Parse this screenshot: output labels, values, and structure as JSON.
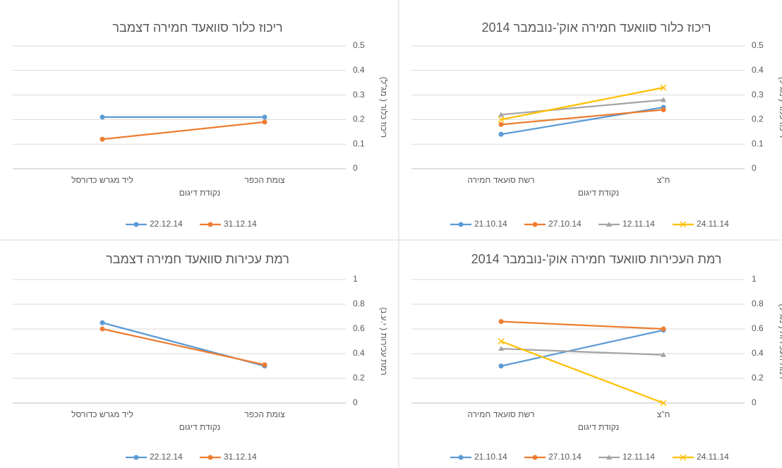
{
  "chart_data": [
    {
      "type": "line",
      "title": "ריכוז כלור סוואעד חמירה דצמבר",
      "x_label": "נקודת דיגום",
      "y_label": "ריכוז כלור ( מג\"ל)",
      "categories": [
        "ליד מגרש כדורסל",
        "צומת הכפר"
      ],
      "series": [
        {
          "name": "22.12.14",
          "color": "#5b9bd5",
          "marker": "circle",
          "values": [
            0.21,
            0.21
          ]
        },
        {
          "name": "31.12.14",
          "color": "#ed7d31",
          "marker": "circle",
          "values": [
            0.12,
            0.19
          ]
        }
      ],
      "ylim": [
        0,
        0.5
      ],
      "yticks": [
        0,
        0.1,
        0.2,
        0.3,
        0.4,
        0.5
      ],
      "grid": true,
      "legend": "bottom"
    },
    {
      "type": "line",
      "title": "ריכוז כלור סוואעד חמירה אוק'-נובמבר 2014",
      "x_label": "נקודת דיגום",
      "y_label": "ריכוז כלור ( מג\"ל)",
      "categories": [
        "רשת סועאד חמירה",
        "ח\"צ"
      ],
      "series": [
        {
          "name": "21.10.14",
          "color": "#5b9bd5",
          "marker": "circle",
          "values": [
            0.14,
            0.25
          ]
        },
        {
          "name": "27.10.14",
          "color": "#ed7d31",
          "marker": "circle",
          "values": [
            0.18,
            0.24
          ]
        },
        {
          "name": "12.11.14",
          "color": "#a5a5a5",
          "marker": "triangle",
          "values": [
            0.22,
            0.28
          ]
        },
        {
          "name": "24.11.14",
          "color": "#ffc000",
          "marker": "x",
          "values": [
            0.2,
            0.33
          ]
        }
      ],
      "ylim": [
        0,
        0.5
      ],
      "yticks": [
        0,
        0.1,
        0.2,
        0.3,
        0.4,
        0.5
      ],
      "grid": true,
      "legend": "bottom"
    },
    {
      "type": "line",
      "title": "רמת עכירות סוואעד חמירה דצמבר",
      "x_label": "נקודת דיגום",
      "y_label": "רמת עכירות ( י.ע.נ)",
      "categories": [
        "ליד מגרש כדורסל",
        "צומת הכפר"
      ],
      "series": [
        {
          "name": "22.12.14",
          "color": "#5b9bd5",
          "marker": "circle",
          "values": [
            0.65,
            0.3
          ]
        },
        {
          "name": "31.12.14",
          "color": "#ed7d31",
          "marker": "circle",
          "values": [
            0.6,
            0.31
          ]
        }
      ],
      "ylim": [
        0,
        1
      ],
      "yticks": [
        0,
        0.2,
        0.4,
        0.6,
        0.8,
        1
      ],
      "grid": true,
      "legend": "bottom"
    },
    {
      "type": "line",
      "title": "רמת העכירות סוואעד חמירה אוק'-נובמבר 2014",
      "x_label": "נקודת דיגום",
      "y_label": "רמת העכירות ( מג\"ל)",
      "categories": [
        "רשת סועאד חמירה",
        "ח\"צ"
      ],
      "series": [
        {
          "name": "21.10.14",
          "color": "#5b9bd5",
          "marker": "circle",
          "values": [
            0.3,
            0.59
          ]
        },
        {
          "name": "27.10.14",
          "color": "#ed7d31",
          "marker": "circle",
          "values": [
            0.66,
            0.6
          ]
        },
        {
          "name": "12.11.14",
          "color": "#a5a5a5",
          "marker": "triangle",
          "values": [
            0.44,
            0.39
          ]
        },
        {
          "name": "24.11.14",
          "color": "#ffc000",
          "marker": "x",
          "values": [
            0.5,
            0
          ]
        }
      ],
      "ylim": [
        0,
        1
      ],
      "yticks": [
        0,
        0.2,
        0.4,
        0.6,
        0.8,
        1
      ],
      "grid": true,
      "legend": "bottom"
    }
  ]
}
